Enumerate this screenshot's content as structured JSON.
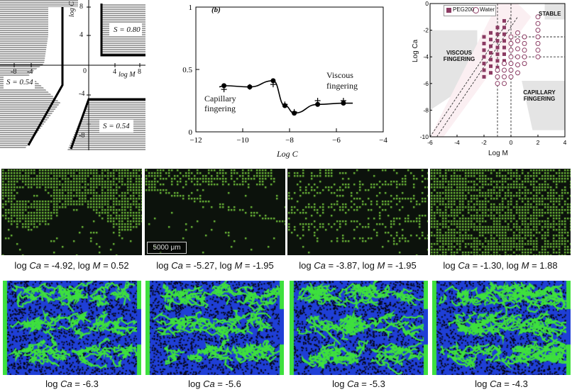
{
  "phase_left": {
    "axis_x": "log M",
    "axis_y": "log C",
    "ticks_x": [
      "-8",
      "-4",
      "4",
      "8"
    ],
    "ticks_y": [
      "8",
      "4",
      "0",
      "-4",
      "-8"
    ],
    "regions": [
      "S = 0.80",
      "S = 0.54",
      "S = 0.54"
    ]
  },
  "chart_data": [
    {
      "type": "line",
      "title": "(b)",
      "xlabel": "Log C",
      "ylabel": "",
      "xlim": [
        -12,
        -4
      ],
      "ylim": [
        0,
        1
      ],
      "x_ticks": [
        "-12",
        "-10",
        "-8",
        "-6",
        "-4"
      ],
      "y_ticks": [
        "0",
        "0.5",
        "1"
      ],
      "annotations": [
        "Capillary",
        "fingering",
        "Viscous",
        "fingering"
      ],
      "series": [
        {
          "marker": "circle",
          "x": [
            -10.8,
            -9.7,
            -8.7,
            -8.2,
            -7.8,
            -6.8,
            -5.7
          ],
          "y": [
            0.37,
            0.36,
            0.41,
            0.21,
            0.15,
            0.22,
            0.23
          ]
        },
        {
          "marker": "plus",
          "x": [
            -10.8,
            -9.7,
            -8.7,
            -8.2,
            -7.8,
            -6.8,
            -5.7
          ],
          "y": [
            0.34,
            0.36,
            0.38,
            0.22,
            0.16,
            0.25,
            0.25
          ]
        }
      ]
    },
    {
      "type": "scatter",
      "xlabel": "Log M",
      "ylabel": "Log Ca",
      "xlim": [
        -6,
        4
      ],
      "ylim": [
        -10,
        0
      ],
      "x_ticks": [
        "-6",
        "-4",
        "-2",
        "0",
        "2",
        "4"
      ],
      "y_ticks": [
        "0",
        "-2",
        "-4",
        "-6",
        "-8",
        "-10"
      ],
      "regions": [
        "STABLE",
        "VISCOUS",
        "FINGERING",
        "CAPILLARY",
        "FINGERING"
      ],
      "legend_position": "top-left",
      "series": [
        {
          "name": "PEG200",
          "marker": "filled-square",
          "color": "#8b3a62",
          "x": [
            -2,
            -2,
            -2,
            -2,
            -2,
            -2,
            -2,
            -1.5,
            -1.5,
            -1.5,
            -1.5,
            -1.5,
            -1.5,
            -1.5,
            -1,
            -1,
            -1,
            -1,
            -1,
            -1,
            -1,
            -0.5,
            -0.5,
            -0.5,
            -0.5,
            -0.5,
            -0.5,
            -0.5
          ],
          "y": [
            -2.5,
            -3,
            -3.5,
            -4,
            -4.5,
            -5,
            -5.5,
            -2.2,
            -2.7,
            -3.2,
            -3.7,
            -4.2,
            -4.7,
            -5.2,
            -1.8,
            -2.3,
            -2.8,
            -3.3,
            -3.8,
            -4.3,
            -4.8,
            -1.3,
            -1.8,
            -2.3,
            -2.8,
            -3.3,
            -3.8,
            -4.3
          ]
        },
        {
          "name": "Water",
          "marker": "open-circle",
          "color": "#8b3a62",
          "x": [
            -1,
            -1,
            -1,
            -0.5,
            -0.5,
            -0.5,
            -0.5,
            0,
            0,
            0,
            0,
            0,
            0,
            0,
            0.5,
            0.5,
            0.5,
            0.5,
            0.5,
            0.5,
            1,
            1,
            1,
            1,
            1,
            2,
            2,
            2,
            2,
            2,
            2,
            2
          ],
          "y": [
            -5,
            -5.5,
            -6,
            -4.5,
            -5,
            -5.5,
            -6,
            -2.5,
            -3,
            -3.5,
            -4,
            -4.5,
            -5,
            -5.5,
            -2.2,
            -2.8,
            -3.4,
            -4,
            -4.6,
            -5.2,
            -2.5,
            -3,
            -3.5,
            -4,
            -4.5,
            -1,
            -1.5,
            -2,
            -2.5,
            -3,
            -3.5,
            -4
          ]
        }
      ]
    }
  ],
  "row1": {
    "scale_bar": "5000 μm",
    "captions": [
      {
        "p1": "log ",
        "ca": "Ca",
        "p2": " = -4.92, log ",
        "m": "M",
        "p3": " = 0.52"
      },
      {
        "p1": "log ",
        "ca": "Ca",
        "p2": " = -5.27, log ",
        "m": "M",
        "p3": " = -1.95"
      },
      {
        "p1": "log ",
        "ca": "Ca",
        "p2": " = -3.87, log ",
        "m": "M",
        "p3": " = -1.95"
      },
      {
        "p1": "log ",
        "ca": "Ca",
        "p2": " = -1.30, log ",
        "m": "M",
        "p3": " = 1.88"
      }
    ]
  },
  "row2": {
    "captions": [
      {
        "p1": "log ",
        "ca": "Ca",
        "p2": " = -6.3"
      },
      {
        "p1": "log ",
        "ca": "Ca",
        "p2": " = -5.6"
      },
      {
        "p1": "log ",
        "ca": "Ca",
        "p2": " = -5.3"
      },
      {
        "p1": "log ",
        "ca": "Ca",
        "p2": " = -4.3"
      }
    ]
  },
  "colors": {
    "micro_green": "#6fbf3a",
    "micro_bg": "#0c120c",
    "sim_blue": "#1f3fd6",
    "sim_green": "#3ee03e",
    "sim_black": "#050510",
    "marker": "#8b3a62"
  }
}
